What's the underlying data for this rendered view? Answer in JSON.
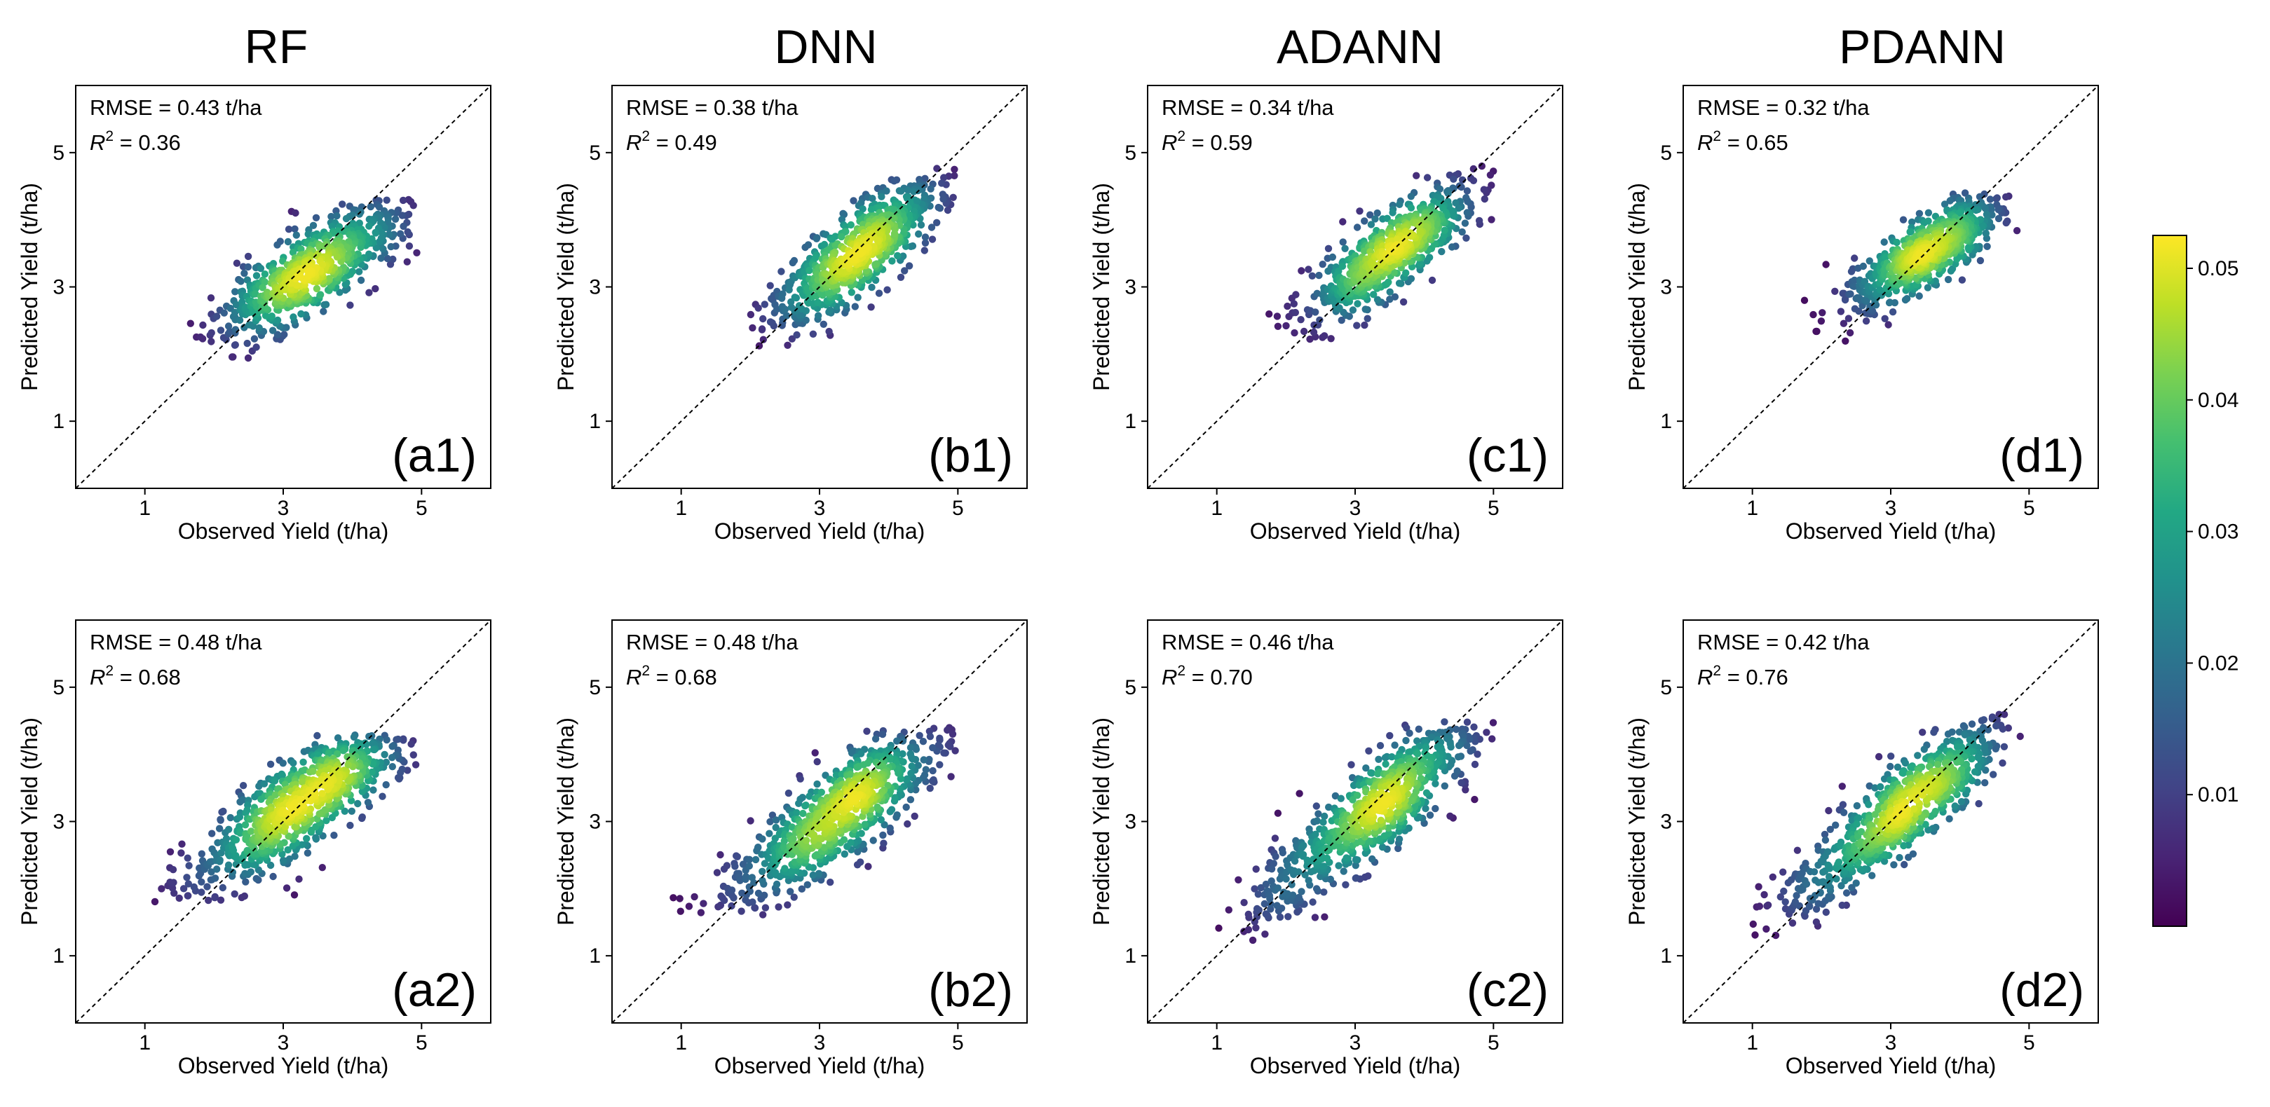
{
  "columns": [
    {
      "title": "RF"
    },
    {
      "title": "DNN"
    },
    {
      "title": "ADANN"
    },
    {
      "title": "PDANN"
    }
  ],
  "colorbar": {
    "colormap": "viridis",
    "ticks": [
      "0.01",
      "0.02",
      "0.03",
      "0.04",
      "0.05"
    ],
    "tick_values": [
      0.01,
      0.02,
      0.03,
      0.04,
      0.05
    ],
    "range": [
      0.0,
      0.0525
    ]
  },
  "chart_data": [
    {
      "type": "scatter",
      "panel": "(a1)",
      "model": "RF",
      "row": 1,
      "rmse_text": "RMSE = 0.43 t/ha",
      "r2_prefix": "R",
      "r2_value_text": " = 0.36",
      "rmse": 0.43,
      "r2": 0.36,
      "xlabel": "Observed Yield (t/ha)",
      "ylabel": "Predicted Yield (t/ha)",
      "xlim": [
        0,
        6
      ],
      "ylim": [
        0,
        6
      ],
      "xticks": [
        "1",
        "3",
        "5"
      ],
      "yticks": [
        "1",
        "3",
        "5"
      ],
      "reference_line": "1:1",
      "cloud": {
        "cx": 3.4,
        "cy": 3.25,
        "slope": 0.6,
        "sx": 0.7,
        "sy": 0.33,
        "xmin": 1.6,
        "xmax": 5.0,
        "ymin": 1.9,
        "ymax": 4.3,
        "n": 650,
        "seed": 11
      }
    },
    {
      "type": "scatter",
      "panel": "(b1)",
      "model": "DNN",
      "row": 1,
      "rmse_text": "RMSE = 0.38 t/ha",
      "r2_prefix": "R",
      "r2_value_text": " = 0.49",
      "rmse": 0.38,
      "r2": 0.49,
      "xlabel": "Observed Yield (t/ha)",
      "ylabel": "Predicted Yield (t/ha)",
      "xlim": [
        0,
        6
      ],
      "ylim": [
        0,
        6
      ],
      "xticks": [
        "1",
        "3",
        "5"
      ],
      "yticks": [
        "1",
        "3",
        "5"
      ],
      "reference_line": "1:1",
      "cloud": {
        "cx": 3.5,
        "cy": 3.45,
        "slope": 0.75,
        "sx": 0.65,
        "sy": 0.33,
        "xmin": 1.7,
        "xmax": 5.0,
        "ymin": 2.1,
        "ymax": 4.8,
        "n": 650,
        "seed": 23
      }
    },
    {
      "type": "scatter",
      "panel": "(c1)",
      "model": "ADANN",
      "row": 1,
      "rmse_text": "RMSE = 0.34 t/ha",
      "r2_prefix": "R",
      "r2_value_text": " = 0.59",
      "rmse": 0.34,
      "r2": 0.59,
      "xlabel": "Observed Yield (t/ha)",
      "ylabel": "Predicted Yield (t/ha)",
      "xlim": [
        0,
        6
      ],
      "ylim": [
        0,
        6
      ],
      "xticks": [
        "1",
        "3",
        "5"
      ],
      "yticks": [
        "1",
        "3",
        "5"
      ],
      "reference_line": "1:1",
      "cloud": {
        "cx": 3.55,
        "cy": 3.55,
        "slope": 0.7,
        "sx": 0.62,
        "sy": 0.3,
        "xmin": 1.7,
        "xmax": 5.0,
        "ymin": 2.2,
        "ymax": 4.8,
        "n": 650,
        "seed": 37
      }
    },
    {
      "type": "scatter",
      "panel": "(d1)",
      "model": "PDANN",
      "row": 1,
      "rmse_text": "RMSE = 0.32 t/ha",
      "r2_prefix": "R",
      "r2_value_text": " = 0.65",
      "rmse": 0.32,
      "r2": 0.65,
      "xlabel": "Observed Yield (t/ha)",
      "ylabel": "Predicted Yield (t/ha)",
      "xlim": [
        0,
        6
      ],
      "ylim": [
        0,
        6
      ],
      "xticks": [
        "1",
        "3",
        "5"
      ],
      "yticks": [
        "1",
        "3",
        "5"
      ],
      "reference_line": "1:1",
      "cloud": {
        "cx": 3.55,
        "cy": 3.55,
        "slope": 0.65,
        "sx": 0.58,
        "sy": 0.27,
        "xmin": 1.7,
        "xmax": 4.9,
        "ymin": 2.1,
        "ymax": 4.4,
        "n": 650,
        "seed": 41
      }
    },
    {
      "type": "scatter",
      "panel": "(a2)",
      "model": "RF",
      "row": 2,
      "rmse_text": "RMSE = 0.48 t/ha",
      "r2_prefix": "R",
      "r2_value_text": " = 0.68",
      "rmse": 0.48,
      "r2": 0.68,
      "xlabel": "Observed Yield (t/ha)",
      "ylabel": "Predicted Yield (t/ha)",
      "xlim": [
        0,
        6
      ],
      "ylim": [
        0,
        6
      ],
      "xticks": [
        "1",
        "3",
        "5"
      ],
      "yticks": [
        "1",
        "3",
        "5"
      ],
      "reference_line": "1:1",
      "cloud": {
        "cx": 3.3,
        "cy": 3.3,
        "slope": 0.7,
        "sx": 0.9,
        "sy": 0.38,
        "xmin": 0.5,
        "xmax": 5.0,
        "ymin": 1.8,
        "ymax": 4.3,
        "n": 750,
        "seed": 53
      }
    },
    {
      "type": "scatter",
      "panel": "(b2)",
      "model": "DNN",
      "row": 2,
      "rmse_text": "RMSE = 0.48 t/ha",
      "r2_prefix": "R",
      "r2_value_text": " = 0.68",
      "rmse": 0.48,
      "r2": 0.68,
      "xlabel": "Observed Yield (t/ha)",
      "ylabel": "Predicted Yield (t/ha)",
      "xlim": [
        0,
        6
      ],
      "ylim": [
        0,
        6
      ],
      "xticks": [
        "1",
        "3",
        "5"
      ],
      "yticks": [
        "1",
        "3",
        "5"
      ],
      "reference_line": "1:1",
      "cloud": {
        "cx": 3.3,
        "cy": 3.15,
        "slope": 0.75,
        "sx": 0.9,
        "sy": 0.36,
        "xmin": 0.5,
        "xmax": 5.0,
        "ymin": 1.6,
        "ymax": 4.4,
        "n": 750,
        "seed": 67
      }
    },
    {
      "type": "scatter",
      "panel": "(c2)",
      "model": "ADANN",
      "row": 2,
      "rmse_text": "RMSE = 0.46 t/ha",
      "r2_prefix": "R",
      "r2_value_text": " = 0.70",
      "rmse": 0.46,
      "r2": 0.7,
      "xlabel": "Observed Yield (t/ha)",
      "ylabel": "Predicted Yield (t/ha)",
      "xlim": [
        0,
        6
      ],
      "ylim": [
        0,
        6
      ],
      "xticks": [
        "1",
        "3",
        "5"
      ],
      "yticks": [
        "1",
        "3",
        "5"
      ],
      "reference_line": "1:1",
      "cloud": {
        "cx": 3.3,
        "cy": 3.2,
        "slope": 0.8,
        "sx": 0.9,
        "sy": 0.36,
        "xmin": 0.5,
        "xmax": 5.0,
        "ymin": 1.2,
        "ymax": 4.5,
        "n": 750,
        "seed": 79
      }
    },
    {
      "type": "scatter",
      "panel": "(d2)",
      "model": "PDANN",
      "row": 2,
      "rmse_text": "RMSE = 0.42 t/ha",
      "r2_prefix": "R",
      "r2_value_text": " = 0.76",
      "rmse": 0.42,
      "r2": 0.76,
      "xlabel": "Observed Yield (t/ha)",
      "ylabel": "Predicted Yield (t/ha)",
      "xlim": [
        0,
        6
      ],
      "ylim": [
        0,
        6
      ],
      "xticks": [
        "1",
        "3",
        "5"
      ],
      "yticks": [
        "1",
        "3",
        "5"
      ],
      "reference_line": "1:1",
      "cloud": {
        "cx": 3.2,
        "cy": 3.2,
        "slope": 0.8,
        "sx": 0.85,
        "sy": 0.34,
        "xmin": 0.5,
        "xmax": 5.0,
        "ymin": 1.3,
        "ymax": 4.6,
        "n": 750,
        "seed": 97
      }
    }
  ]
}
